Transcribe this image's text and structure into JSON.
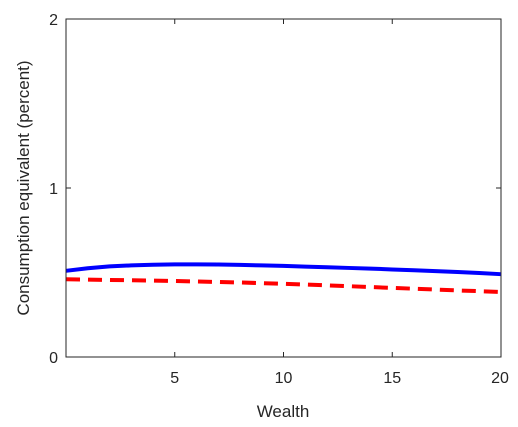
{
  "chart_data": {
    "type": "line",
    "title": "",
    "xlabel": "Wealth",
    "ylabel": "Consumption equivalent (percent)",
    "xlim": [
      0,
      20
    ],
    "ylim": [
      0,
      2
    ],
    "xticks": [
      5,
      10,
      15,
      20
    ],
    "yticks": [
      0,
      1,
      2
    ],
    "grid": false,
    "legend": "none",
    "series": [
      {
        "style": "solid",
        "color": "#0000ff",
        "x": [
          0,
          1,
          2,
          3,
          4,
          5,
          6,
          7,
          8,
          9,
          10,
          11,
          12,
          13,
          14,
          15,
          16,
          17,
          18,
          19,
          20
        ],
        "y": [
          0.51,
          0.525,
          0.536,
          0.542,
          0.546,
          0.548,
          0.548,
          0.547,
          0.545,
          0.542,
          0.539,
          0.535,
          0.531,
          0.527,
          0.523,
          0.518,
          0.513,
          0.508,
          0.503,
          0.497,
          0.49
        ]
      },
      {
        "style": "dashed",
        "color": "#ff0000",
        "x": [
          0,
          2,
          4,
          6,
          8,
          10,
          12,
          14,
          16,
          18,
          20
        ],
        "y": [
          0.46,
          0.456,
          0.452,
          0.447,
          0.441,
          0.433,
          0.424,
          0.414,
          0.404,
          0.394,
          0.385
        ]
      }
    ]
  }
}
